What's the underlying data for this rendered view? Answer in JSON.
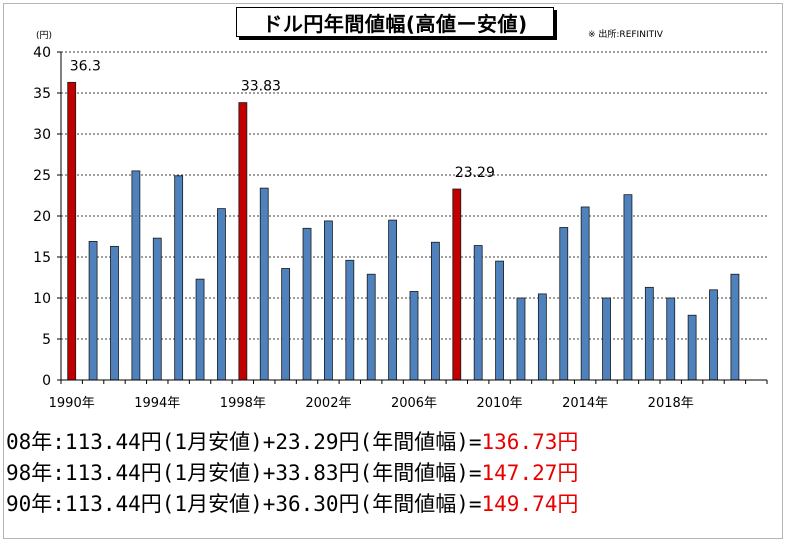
{
  "chart_data": {
    "type": "bar",
    "title": "ドル円年間値幅(高値ー安値)",
    "source": "※ 出所:REFINITIV",
    "unit": "(円)",
    "ylim": [
      0,
      40
    ],
    "yticks": [
      0,
      5,
      10,
      15,
      20,
      25,
      30,
      35,
      40
    ],
    "grid": true,
    "categories": [
      "1990",
      "1991",
      "1992",
      "1993",
      "1994",
      "1995",
      "1996",
      "1997",
      "1998",
      "1999",
      "2000",
      "2001",
      "2002",
      "2003",
      "2004",
      "2005",
      "2006",
      "2007",
      "2008",
      "2009",
      "2010",
      "2011",
      "2012",
      "2013",
      "2014",
      "2015",
      "2016",
      "2017",
      "2018",
      "2019",
      "2020",
      "2021",
      "2022"
    ],
    "xtick_labels": [
      {
        "index": 0,
        "label": "1990年"
      },
      {
        "index": 4,
        "label": "1994年"
      },
      {
        "index": 8,
        "label": "1998年"
      },
      {
        "index": 12,
        "label": "2002年"
      },
      {
        "index": 16,
        "label": "2006年"
      },
      {
        "index": 20,
        "label": "2010年"
      },
      {
        "index": 24,
        "label": "2014年"
      },
      {
        "index": 28,
        "label": "2018年"
      }
    ],
    "values": [
      36.3,
      16.9,
      16.3,
      25.5,
      17.3,
      24.9,
      12.3,
      20.9,
      33.83,
      23.4,
      13.6,
      18.5,
      19.4,
      14.6,
      12.9,
      19.5,
      10.8,
      16.8,
      23.29,
      16.4,
      14.5,
      10.0,
      10.5,
      18.6,
      21.1,
      10.0,
      22.6,
      11.3,
      10.0,
      7.9,
      11.0,
      12.9,
      0
    ],
    "highlighted": [
      {
        "index": 0,
        "label": "36.3"
      },
      {
        "index": 8,
        "label": "33.83"
      },
      {
        "index": 18,
        "label": "23.29"
      }
    ],
    "colors": {
      "normal": "#4f81bd",
      "highlight": "#c00000"
    }
  },
  "summary": [
    {
      "prefix": "08年:113.44円(1月安値)+23.29円(年間値幅)=",
      "result": "136.73円"
    },
    {
      "prefix": "98年:113.44円(1月安値)+33.83円(年間値幅)=",
      "result": "147.27円"
    },
    {
      "prefix": "90年:113.44円(1月安値)+36.30円(年間値幅)=",
      "result": "149.74円"
    }
  ]
}
